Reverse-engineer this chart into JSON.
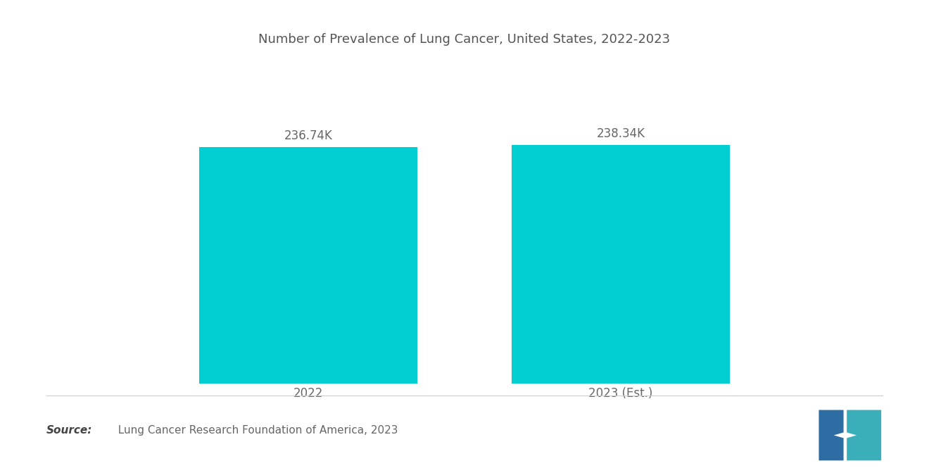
{
  "title": "Number of Prevalence of Lung Cancer, United States, 2022-2023",
  "categories": [
    "2022",
    "2023 (Est.)"
  ],
  "values": [
    236740,
    238340
  ],
  "value_labels": [
    "236.74K",
    "238.34K"
  ],
  "bar_color": "#00CED1",
  "background_color": "#ffffff",
  "title_color": "#555555",
  "label_color": "#666666",
  "source_bold": "Source:",
  "source_text": "  Lung Cancer Research Foundation of America, 2023",
  "ylim": [
    0,
    290000
  ],
  "bar_width": 0.28,
  "title_fontsize": 13,
  "label_fontsize": 12,
  "value_fontsize": 12,
  "source_fontsize": 11,
  "logo_left_color": "#2E6DA4",
  "logo_right_color": "#3AAFB9"
}
